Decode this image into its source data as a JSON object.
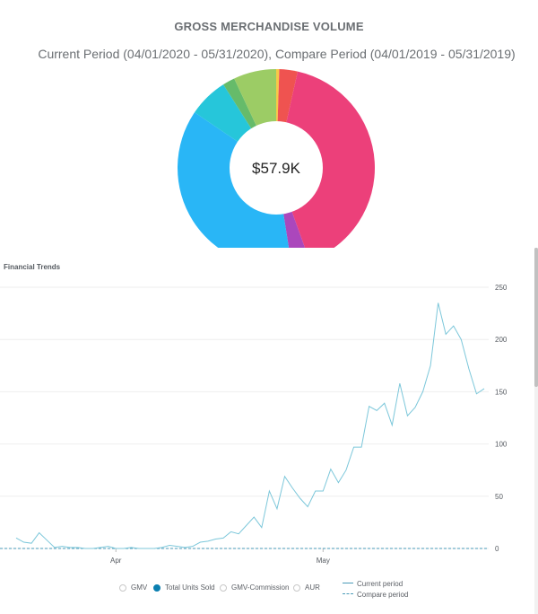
{
  "gmv": {
    "title": "GROSS MERCHANDISE VOLUME",
    "subtitle": "Current Period (04/01/2020 - 05/31/2020), Compare Period (04/01/2019 - 05/31/2019)"
  },
  "chart_data": [
    {
      "type": "pie",
      "title": "GROSS MERCHANDISE VOLUME",
      "center_label": "$57.9K",
      "slices": [
        {
          "value": 0.5,
          "color": "#f7c948"
        },
        {
          "value": 3.0,
          "color": "#ef5350"
        },
        {
          "value": 41.0,
          "color": "#ec407a"
        },
        {
          "value": 3.0,
          "color": "#ab47bc"
        },
        {
          "value": 37.0,
          "color": "#29b6f6"
        },
        {
          "value": 6.5,
          "color": "#26c6da"
        },
        {
          "value": 2.0,
          "color": "#66bb6a"
        },
        {
          "value": 7.0,
          "color": "#9ccc65"
        }
      ]
    },
    {
      "type": "line",
      "title": "Financial Trends",
      "x_tick_labels": [
        "Apr",
        "May"
      ],
      "ylim": [
        0,
        250
      ],
      "y_ticks": [
        0,
        50,
        100,
        150,
        200,
        250
      ],
      "grid": true,
      "series": [
        {
          "name": "Total Units Sold",
          "period": "Current period",
          "color": "#7cc7da",
          "values": [
            10,
            6,
            5,
            15,
            8,
            1,
            2,
            1,
            1,
            0,
            0,
            1,
            2,
            0,
            0,
            1,
            0,
            0,
            0,
            1,
            3,
            2,
            1,
            2,
            6,
            7,
            9,
            10,
            16,
            14,
            22,
            30,
            20,
            55,
            38,
            69,
            58,
            48,
            40,
            55,
            55,
            76,
            63,
            75,
            97,
            97,
            136,
            132,
            139,
            118,
            158,
            127,
            135,
            150,
            175,
            235,
            205,
            213,
            200,
            172,
            148,
            153
          ]
        },
        {
          "name": "Compare period",
          "period": "Compare period",
          "color": "#4a9bb8",
          "dashed": true,
          "values": []
        }
      ]
    }
  ],
  "legend": {
    "metrics": [
      {
        "label": "GMV",
        "selected": false
      },
      {
        "label": "Total Units Sold",
        "selected": true
      },
      {
        "label": "GMV-Commission",
        "selected": false
      },
      {
        "label": "AUR",
        "selected": false
      }
    ],
    "periods": [
      {
        "label": "Current period",
        "style": "solid"
      },
      {
        "label": "Compare period",
        "style": "dashed"
      }
    ]
  },
  "colors": {
    "text": "#6b6f73",
    "accent": "#0b7fb0",
    "grid": "#eeeeee"
  }
}
